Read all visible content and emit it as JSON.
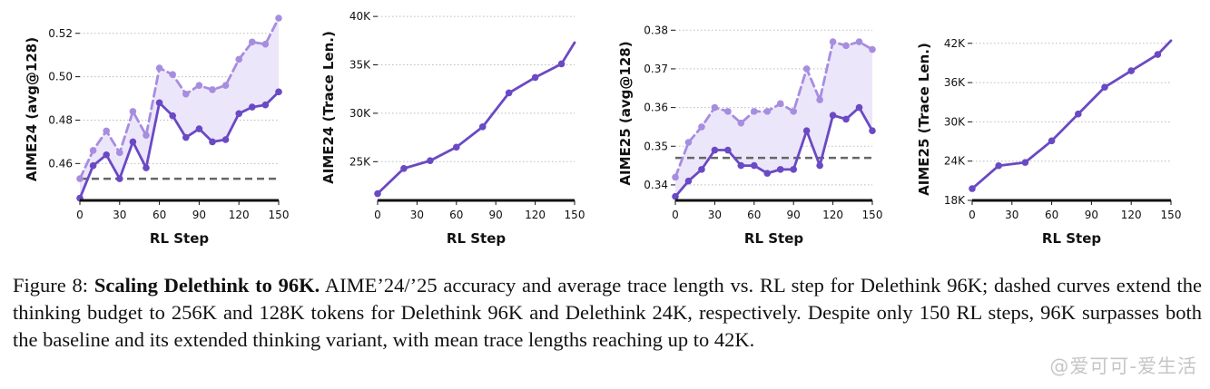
{
  "colors": {
    "solid": "#6a49c4",
    "dashed": "#a78de0",
    "fill": "#ece6fa",
    "baseline": "#666666",
    "grid": "#bbbbbb"
  },
  "chart_data": [
    {
      "type": "line",
      "xlabel": "RL Step",
      "ylabel": "AIME24 (avg@128)",
      "xlim": [
        0,
        150
      ],
      "ylim": [
        0.443,
        0.527
      ],
      "xticks": [
        0,
        30,
        60,
        90,
        120,
        150
      ],
      "xtick_labels": [
        "0",
        "30",
        "60",
        "90",
        "120",
        "150"
      ],
      "yticks": [
        0.46,
        0.48,
        0.5,
        0.52
      ],
      "ytick_labels": [
        "0.46",
        "0.48",
        "0.50",
        "0.52"
      ],
      "grid": "horizontal dotted",
      "fill_between": true,
      "baseline": 0.453,
      "series": [
        {
          "style": "solid",
          "x": [
            0,
            10,
            20,
            30,
            40,
            50,
            60,
            70,
            80,
            90,
            100,
            110,
            120,
            130,
            140,
            150
          ],
          "y": [
            0.444,
            0.459,
            0.464,
            0.453,
            0.47,
            0.458,
            0.488,
            0.482,
            0.472,
            0.476,
            0.47,
            0.471,
            0.483,
            0.486,
            0.487,
            0.493
          ]
        },
        {
          "style": "dashed",
          "x": [
            0,
            10,
            20,
            30,
            40,
            50,
            60,
            70,
            80,
            90,
            100,
            110,
            120,
            130,
            140,
            150
          ],
          "y": [
            0.453,
            0.466,
            0.475,
            0.465,
            0.484,
            0.473,
            0.504,
            0.501,
            0.492,
            0.496,
            0.494,
            0.496,
            0.508,
            0.516,
            0.515,
            0.527
          ]
        }
      ]
    },
    {
      "type": "line",
      "xlabel": "RL Step",
      "ylabel": "AIME24 (Trace Len.)",
      "xlim": [
        0,
        150
      ],
      "ylim": [
        21000,
        40200
      ],
      "xticks": [
        0,
        30,
        60,
        90,
        120,
        150
      ],
      "xtick_labels": [
        "0",
        "30",
        "60",
        "90",
        "120",
        "150"
      ],
      "yticks": [
        25000,
        30000,
        35000,
        40000
      ],
      "ytick_labels": [
        "25K",
        "30K",
        "35K",
        "40K"
      ],
      "grid": "horizontal dotted",
      "series": [
        {
          "style": "solid",
          "x": [
            0,
            20,
            40,
            60,
            80,
            100,
            120,
            140,
            150
          ],
          "y": [
            21700,
            24300,
            25100,
            26500,
            28600,
            32100,
            33700,
            35100,
            37300
          ],
          "markers_x": [
            0,
            20,
            40,
            60,
            80,
            100,
            120,
            140
          ]
        }
      ]
    },
    {
      "type": "line",
      "xlabel": "RL Step",
      "ylabel": "AIME25 (avg@128)",
      "xlim": [
        0,
        150
      ],
      "ylim": [
        0.336,
        0.381
      ],
      "xticks": [
        0,
        30,
        60,
        90,
        120,
        150
      ],
      "xtick_labels": [
        "0",
        "30",
        "60",
        "90",
        "120",
        "150"
      ],
      "yticks": [
        0.34,
        0.35,
        0.36,
        0.37,
        0.38
      ],
      "ytick_labels": [
        "0.34",
        "0.35",
        "0.36",
        "0.37",
        "0.38"
      ],
      "grid": "horizontal dotted",
      "fill_between": true,
      "baseline": 0.347,
      "series": [
        {
          "style": "solid",
          "x": [
            0,
            10,
            20,
            30,
            40,
            50,
            60,
            70,
            80,
            90,
            100,
            110,
            120,
            130,
            140,
            150
          ],
          "y": [
            0.337,
            0.341,
            0.344,
            0.349,
            0.349,
            0.345,
            0.345,
            0.343,
            0.344,
            0.344,
            0.354,
            0.345,
            0.358,
            0.357,
            0.36,
            0.354
          ]
        },
        {
          "style": "dashed",
          "x": [
            0,
            10,
            20,
            30,
            40,
            50,
            60,
            70,
            80,
            90,
            100,
            110,
            120,
            130,
            140,
            150
          ],
          "y": [
            0.342,
            0.351,
            0.355,
            0.36,
            0.359,
            0.356,
            0.359,
            0.359,
            0.361,
            0.359,
            0.37,
            0.362,
            0.377,
            0.376,
            0.377,
            0.375
          ]
        }
      ]
    },
    {
      "type": "line",
      "xlabel": "RL Step",
      "ylabel": "AIME25 (Trace Len.)",
      "xlim": [
        0,
        150
      ],
      "ylim": [
        18000,
        42800
      ],
      "xticks": [
        0,
        30,
        60,
        90,
        120,
        150
      ],
      "xtick_labels": [
        "0",
        "30",
        "60",
        "90",
        "120",
        "150"
      ],
      "yticks": [
        18000,
        24000,
        30000,
        36000,
        42000
      ],
      "ytick_labels": [
        "18K",
        "24K",
        "30K",
        "36K",
        "42K"
      ],
      "grid": "horizontal dotted",
      "series": [
        {
          "style": "solid",
          "x": [
            0,
            20,
            40,
            60,
            80,
            100,
            120,
            140,
            150
          ],
          "y": [
            19800,
            23300,
            23800,
            27100,
            31200,
            35300,
            37800,
            40300,
            42400
          ],
          "markers_x": [
            0,
            20,
            40,
            60,
            80,
            100,
            120,
            140
          ]
        }
      ]
    }
  ],
  "caption": {
    "prefix": "Figure 8: ",
    "title": "Scaling Delethink to 96K.",
    "body": " AIME’24/’25 accuracy and average trace length vs. RL step for Delethink 96K; dashed curves extend the thinking budget to 256K and 128K tokens for Delethink 96K and Delethink 24K, respectively. Despite only 150 RL steps, 96K surpasses both the baseline and its extended thinking variant, with mean trace lengths reaching up to 42K."
  },
  "watermark": "@爱可可-爱生活"
}
